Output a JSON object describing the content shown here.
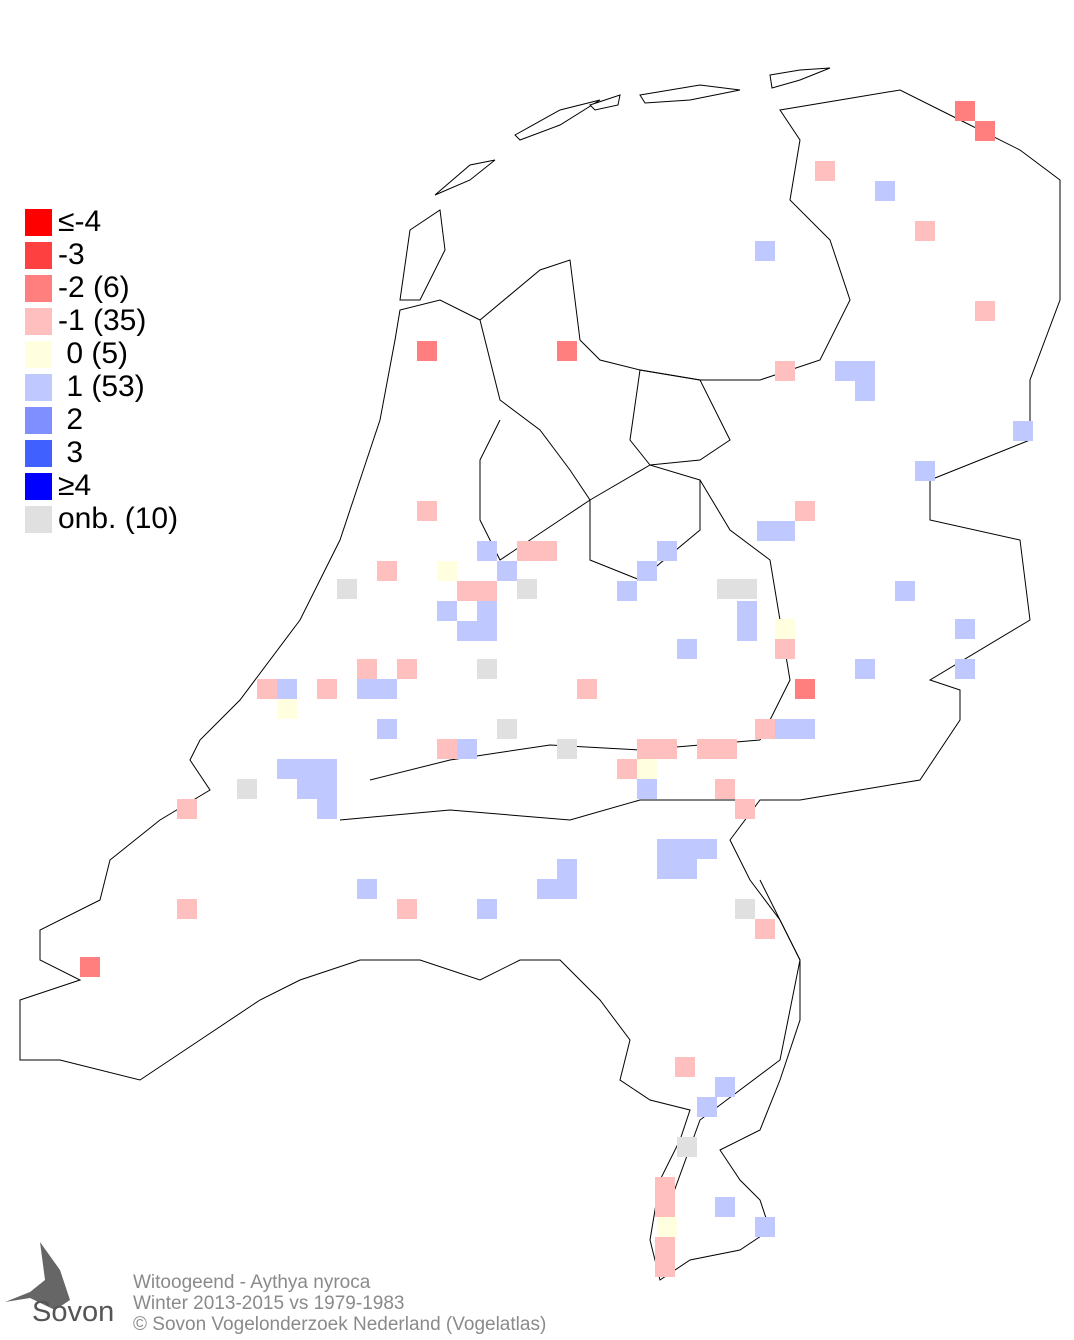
{
  "legend": {
    "items": [
      {
        "label": "≤-4",
        "color": "#ff0000"
      },
      {
        "label": "-3",
        "color": "#ff4040"
      },
      {
        "label": "-2 (6)",
        "color": "#ff7f7f"
      },
      {
        "label": "-1 (35)",
        "color": "#ffbfbf"
      },
      {
        "label": " 0 (5)",
        "color": "#ffffe0"
      },
      {
        "label": " 1 (53)",
        "color": "#bfc8ff"
      },
      {
        "label": " 2",
        "color": "#7f8fff"
      },
      {
        "label": " 3",
        "color": "#4060ff"
      },
      {
        "label": "≥4",
        "color": "#0000ff"
      },
      {
        "label": "onb. (10)",
        "color": "#e0e0e0"
      }
    ]
  },
  "footer": {
    "species": "Witoogeend - Aythya nyroca",
    "period": "Winter 2013-2015 vs 1979-1983",
    "copyright": "© Sovon Vogelonderzoek Nederland (Vogelatlas)"
  },
  "logo": {
    "text": "Sovon"
  }
}
